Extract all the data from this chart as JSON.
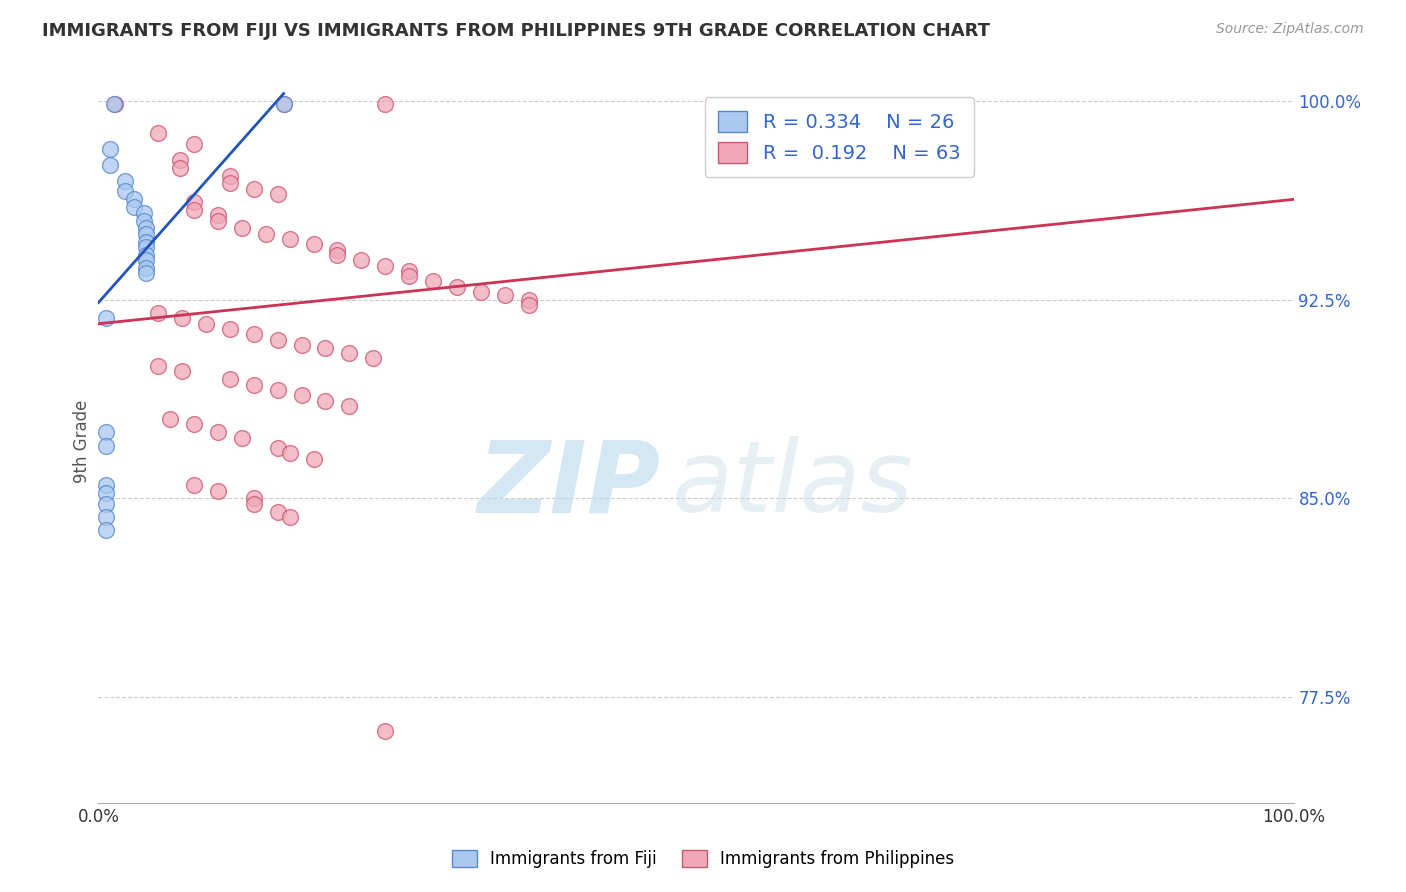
{
  "title": "IMMIGRANTS FROM FIJI VS IMMIGRANTS FROM PHILIPPINES 9TH GRADE CORRELATION CHART",
  "source_text": "Source: ZipAtlas.com",
  "ylabel": "9th Grade",
  "xlim": [
    0.0,
    1.0
  ],
  "ylim": [
    0.735,
    1.008
  ],
  "yticks": [
    0.775,
    0.85,
    0.925,
    1.0
  ],
  "ytick_labels": [
    "77.5%",
    "85.0%",
    "92.5%",
    "100.0%"
  ],
  "xticks": [
    0.0,
    1.0
  ],
  "xtick_labels": [
    "0.0%",
    "100.0%"
  ],
  "legend_labels": [
    "Immigrants from Fiji",
    "Immigrants from Philippines"
  ],
  "legend_R": [
    0.334,
    0.192
  ],
  "legend_N": [
    26,
    63
  ],
  "fiji_color": "#aac8f0",
  "philippines_color": "#f0a8b8",
  "fiji_edge_color": "#5588cc",
  "philippines_edge_color": "#cc5570",
  "trendline_fiji_color": "#2255bb",
  "trendline_phil_color": "#cc3355",
  "watermark_zip": "ZIP",
  "watermark_atlas": "atlas",
  "background_color": "#ffffff",
  "grid_color": "#cccccc",
  "fiji_scatter": [
    [
      0.013,
      0.999
    ],
    [
      0.155,
      0.999
    ],
    [
      0.01,
      0.982
    ],
    [
      0.01,
      0.976
    ],
    [
      0.022,
      0.97
    ],
    [
      0.022,
      0.966
    ],
    [
      0.03,
      0.963
    ],
    [
      0.03,
      0.96
    ],
    [
      0.038,
      0.958
    ],
    [
      0.038,
      0.955
    ],
    [
      0.04,
      0.952
    ],
    [
      0.04,
      0.95
    ],
    [
      0.04,
      0.947
    ],
    [
      0.04,
      0.945
    ],
    [
      0.04,
      0.942
    ],
    [
      0.04,
      0.94
    ],
    [
      0.04,
      0.937
    ],
    [
      0.04,
      0.935
    ],
    [
      0.006,
      0.918
    ],
    [
      0.006,
      0.875
    ],
    [
      0.006,
      0.87
    ],
    [
      0.006,
      0.855
    ],
    [
      0.006,
      0.852
    ],
    [
      0.006,
      0.848
    ],
    [
      0.006,
      0.843
    ],
    [
      0.006,
      0.838
    ]
  ],
  "phil_scatter": [
    [
      0.014,
      0.999
    ],
    [
      0.155,
      0.999
    ],
    [
      0.24,
      0.999
    ],
    [
      0.05,
      0.988
    ],
    [
      0.08,
      0.984
    ],
    [
      0.068,
      0.978
    ],
    [
      0.068,
      0.975
    ],
    [
      0.11,
      0.972
    ],
    [
      0.11,
      0.969
    ],
    [
      0.13,
      0.967
    ],
    [
      0.15,
      0.965
    ],
    [
      0.08,
      0.962
    ],
    [
      0.08,
      0.959
    ],
    [
      0.1,
      0.957
    ],
    [
      0.1,
      0.955
    ],
    [
      0.12,
      0.952
    ],
    [
      0.14,
      0.95
    ],
    [
      0.16,
      0.948
    ],
    [
      0.18,
      0.946
    ],
    [
      0.2,
      0.944
    ],
    [
      0.2,
      0.942
    ],
    [
      0.22,
      0.94
    ],
    [
      0.24,
      0.938
    ],
    [
      0.26,
      0.936
    ],
    [
      0.26,
      0.934
    ],
    [
      0.28,
      0.932
    ],
    [
      0.3,
      0.93
    ],
    [
      0.32,
      0.928
    ],
    [
      0.34,
      0.927
    ],
    [
      0.36,
      0.925
    ],
    [
      0.36,
      0.923
    ],
    [
      0.05,
      0.92
    ],
    [
      0.07,
      0.918
    ],
    [
      0.09,
      0.916
    ],
    [
      0.11,
      0.914
    ],
    [
      0.13,
      0.912
    ],
    [
      0.15,
      0.91
    ],
    [
      0.17,
      0.908
    ],
    [
      0.19,
      0.907
    ],
    [
      0.21,
      0.905
    ],
    [
      0.23,
      0.903
    ],
    [
      0.05,
      0.9
    ],
    [
      0.07,
      0.898
    ],
    [
      0.11,
      0.895
    ],
    [
      0.13,
      0.893
    ],
    [
      0.15,
      0.891
    ],
    [
      0.17,
      0.889
    ],
    [
      0.19,
      0.887
    ],
    [
      0.21,
      0.885
    ],
    [
      0.06,
      0.88
    ],
    [
      0.08,
      0.878
    ],
    [
      0.1,
      0.875
    ],
    [
      0.12,
      0.873
    ],
    [
      0.15,
      0.869
    ],
    [
      0.16,
      0.867
    ],
    [
      0.18,
      0.865
    ],
    [
      0.08,
      0.855
    ],
    [
      0.1,
      0.853
    ],
    [
      0.13,
      0.85
    ],
    [
      0.13,
      0.848
    ],
    [
      0.15,
      0.845
    ],
    [
      0.16,
      0.843
    ],
    [
      0.24,
      0.762
    ]
  ],
  "fiji_trendline": [
    [
      0.0,
      0.924
    ],
    [
      0.155,
      1.003
    ]
  ],
  "phil_trendline": [
    [
      0.0,
      0.916
    ],
    [
      1.0,
      0.963
    ]
  ]
}
